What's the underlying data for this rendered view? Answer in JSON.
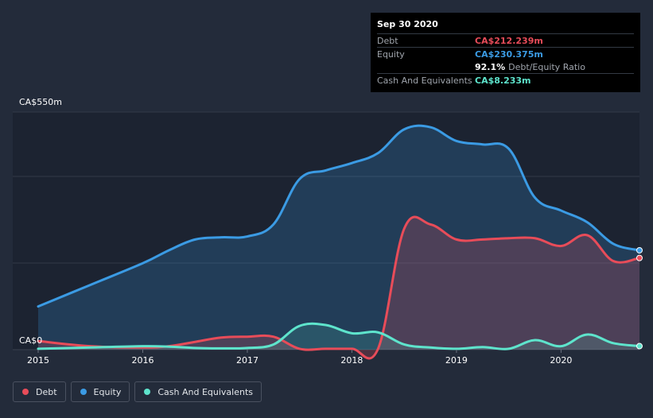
{
  "tooltip": {
    "date": "Sep 30 2020",
    "rows": [
      {
        "label": "Debt",
        "value": "CA$212.239m",
        "color": "#e84c59"
      },
      {
        "label": "Equity",
        "value": "CA$230.375m",
        "color": "#3b9be4"
      },
      {
        "label": "",
        "value": "92.1%",
        "suffix": "Debt/Equity Ratio",
        "color": "#ffffff"
      },
      {
        "label": "Cash And Equivalents",
        "value": "CA$8.233m",
        "color": "#5ee4cc"
      }
    ]
  },
  "legend": [
    {
      "label": "Debt",
      "color": "#e84c59"
    },
    {
      "label": "Equity",
      "color": "#3b9be4"
    },
    {
      "label": "Cash And Equivalents",
      "color": "#5ee4cc"
    }
  ],
  "chart_data": {
    "type": "area",
    "title": "",
    "xlabel": "",
    "ylabel": "",
    "xlim": [
      2015.0,
      2020.75
    ],
    "ylim": [
      0,
      550
    ],
    "y_tick_labels": [
      {
        "value": 550,
        "label": "CA$550m"
      },
      {
        "value": 0,
        "label": "CA$0"
      }
    ],
    "x_tick_labels": [
      {
        "value": 2015,
        "label": "2015"
      },
      {
        "value": 2016,
        "label": "2016"
      },
      {
        "value": 2017,
        "label": "2017"
      },
      {
        "value": 2018,
        "label": "2018"
      },
      {
        "value": 2019,
        "label": "2019"
      },
      {
        "value": 2020,
        "label": "2020"
      }
    ],
    "series": [
      {
        "name": "Equity",
        "color": "#3b9be4",
        "x": [
          2015.0,
          2015.5,
          2016.0,
          2016.25,
          2016.5,
          2016.75,
          2017.0,
          2017.25,
          2017.5,
          2017.75,
          2018.0,
          2018.25,
          2018.5,
          2018.75,
          2019.0,
          2019.25,
          2019.5,
          2019.75,
          2020.0,
          2020.25,
          2020.5,
          2020.75
        ],
        "y": [
          100,
          150,
          200,
          230,
          255,
          260,
          262,
          290,
          395,
          415,
          432,
          455,
          510,
          515,
          483,
          475,
          465,
          352,
          322,
          295,
          245,
          230
        ]
      },
      {
        "name": "Debt",
        "color": "#e84c59",
        "x": [
          2015.0,
          2015.5,
          2016.0,
          2016.25,
          2016.5,
          2016.75,
          2017.0,
          2017.25,
          2017.5,
          2017.75,
          2018.0,
          2018.25,
          2018.5,
          2018.75,
          2019.0,
          2019.25,
          2019.5,
          2019.75,
          2020.0,
          2020.25,
          2020.5,
          2020.75
        ],
        "y": [
          20,
          8,
          5,
          8,
          18,
          28,
          30,
          30,
          2,
          2,
          2,
          2,
          280,
          290,
          255,
          255,
          258,
          258,
          240,
          265,
          205,
          212.239
        ]
      },
      {
        "name": "Cash And Equivalents",
        "color": "#5ee4cc",
        "x": [
          2015.0,
          2015.5,
          2016.0,
          2016.25,
          2016.5,
          2016.75,
          2017.0,
          2017.25,
          2017.5,
          2017.75,
          2018.0,
          2018.25,
          2018.5,
          2018.75,
          2019.0,
          2019.25,
          2019.5,
          2019.75,
          2020.0,
          2020.25,
          2020.5,
          2020.75
        ],
        "y": [
          2,
          5,
          8,
          7,
          4,
          3,
          4,
          12,
          55,
          57,
          38,
          40,
          12,
          5,
          2,
          6,
          2,
          22,
          8,
          35,
          15,
          8.233
        ]
      }
    ]
  }
}
